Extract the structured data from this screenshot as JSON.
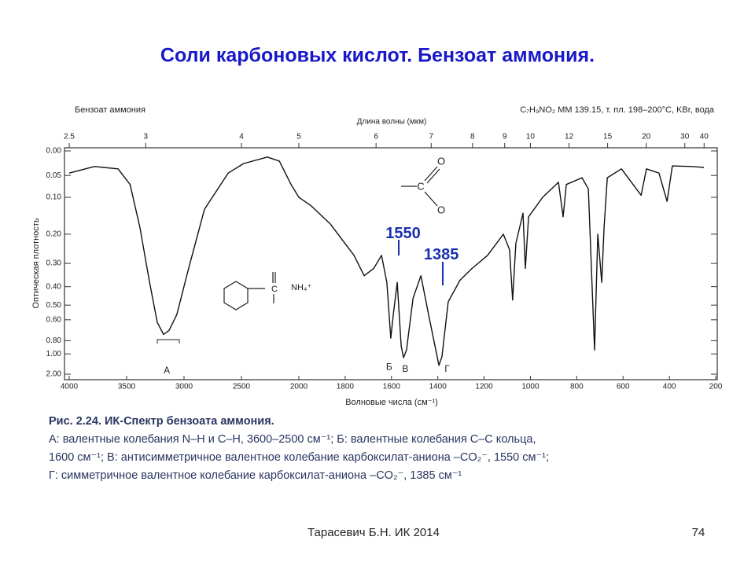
{
  "title": "Соли карбоновых кислот. Бензоат аммония.",
  "caption": [
    "Рис. 2.24. ИК-Спектр бензоата аммония.",
    "А: валентные колебания N–H и C–H, 3600–2500 см⁻¹; Б: валентные колебания C–C кольца,",
    "1600 см⁻¹; В: антисимметричное валентное колебание карбоксилат-аниона –CO₂⁻, 1550 см⁻¹;",
    "Г: симметричное валентное колебание карбоксилат-аниона –CO₂⁻, 1385 см⁻¹"
  ],
  "footer": {
    "author": "Тарасевич Б.Н.  ИК 2014",
    "page": "74"
  },
  "structures": {
    "carboxylate": [
      "O",
      "C",
      "O"
    ],
    "salt": "NH₄⁺"
  },
  "chart_data": {
    "type": "line",
    "title": "Бензоат аммония",
    "subtitle": "C₇H₉NO₂  MM  139.15, т. пл. 198–200°C, KBr, вода",
    "xlabel": "Волновые числа (см⁻¹)",
    "ylabel": "Оптическая плотность",
    "x2label": "Длина волны (мкм)",
    "color": "#111111",
    "xlim": [
      4000,
      200
    ],
    "xscale": "piecewise",
    "xbreak": 2000,
    "xticks": [
      4000,
      3500,
      3000,
      2500,
      2000,
      1800,
      1600,
      1400,
      1200,
      1000,
      800,
      600,
      400,
      200
    ],
    "x2ticks": [
      2.5,
      3,
      4,
      5,
      6,
      7,
      8,
      9,
      10,
      12,
      15,
      20,
      30,
      40
    ],
    "ylim": [
      0,
      2
    ],
    "yscale": "absorbance",
    "yticks": [
      {
        "value": 0,
        "label": "0.00"
      },
      {
        "value": 0.05,
        "label": "0.05"
      },
      {
        "value": 0.1,
        "label": "0.10"
      },
      {
        "value": 0.2,
        "label": "0.20"
      },
      {
        "value": 0.3,
        "label": "0.30"
      },
      {
        "value": 0.4,
        "label": "0.40"
      },
      {
        "value": 0.5,
        "label": "0.50"
      },
      {
        "value": 0.6,
        "label": "0.60"
      },
      {
        "value": 0.8,
        "label": "0.80"
      },
      {
        "value": 1,
        "label": "1.00"
      },
      {
        "value": 2,
        "label": "2.00"
      }
    ],
    "x": [
      4000,
      3780,
      3575,
      3470,
      3384,
      3300,
      3233,
      3178,
      3130,
      3062,
      2960,
      2822,
      2616,
      2480,
      2274,
      2170,
      2068,
      2000,
      1949,
      1864,
      1762,
      1718,
      1677,
      1643,
      1620,
      1603,
      1592,
      1575,
      1558,
      1548,
      1535,
      1507,
      1473,
      1440,
      1412,
      1395,
      1382,
      1355,
      1304,
      1253,
      1185,
      1117,
      1090,
      1077,
      1063,
      1032,
      1022,
      1008,
      947,
      879,
      859,
      845,
      777,
      750,
      723,
      709,
      692,
      682,
      668,
      607,
      522,
      499,
      445,
      410,
      387,
      302,
      251
    ],
    "values": [
      0.045,
      0.031,
      0.036,
      0.07,
      0.18,
      0.38,
      0.62,
      0.73,
      0.69,
      0.56,
      0.32,
      0.13,
      0.045,
      0.025,
      0.012,
      0.02,
      0.07,
      0.1,
      0.12,
      0.17,
      0.27,
      0.35,
      0.32,
      0.27,
      0.38,
      0.77,
      0.56,
      0.38,
      0.87,
      1.08,
      0.93,
      0.46,
      0.35,
      0.56,
      0.87,
      1.31,
      1.05,
      0.48,
      0.37,
      0.32,
      0.27,
      0.2,
      0.25,
      0.47,
      0.23,
      0.14,
      0.32,
      0.15,
      0.1,
      0.065,
      0.15,
      0.07,
      0.055,
      0.08,
      0.93,
      0.2,
      0.38,
      0.18,
      0.055,
      0.036,
      0.095,
      0.036,
      0.045,
      0.11,
      0.03,
      0.031,
      0.033
    ],
    "annotations": [
      {
        "text": "1550",
        "x": 1550,
        "y": 0.2,
        "color": "#1a2fb0"
      },
      {
        "text": "1385",
        "x": 1385,
        "y": 0.27,
        "color": "#1a2fb0"
      },
      {
        "text": "А",
        "x": 3150,
        "y": 1.6,
        "color": "#222222"
      },
      {
        "text": "Б",
        "x": 1610,
        "y": 1.4,
        "color": "#222222"
      },
      {
        "text": "В",
        "x": 1540,
        "y": 1.5,
        "color": "#222222"
      },
      {
        "text": "Г",
        "x": 1360,
        "y": 1.5,
        "color": "#222222"
      }
    ]
  }
}
